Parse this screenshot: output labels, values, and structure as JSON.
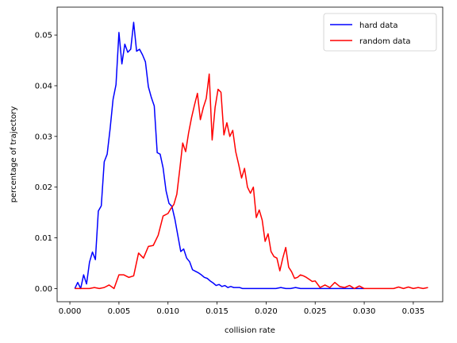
{
  "chart_data": {
    "type": "line",
    "xlabel": "collision rate",
    "ylabel": "percentage of trajectory",
    "xlim": [
      -0.0013,
      0.038
    ],
    "ylim": [
      -0.0026,
      0.0555
    ],
    "xticks": [
      "0.000",
      "0.005",
      "0.010",
      "0.015",
      "0.020",
      "0.025",
      "0.030",
      "0.035"
    ],
    "yticks": [
      "0.00",
      "0.01",
      "0.02",
      "0.03",
      "0.04",
      "0.05"
    ],
    "xtick_values": [
      0.0,
      0.005,
      0.01,
      0.015,
      0.02,
      0.025,
      0.03,
      0.035
    ],
    "ytick_values": [
      0.0,
      0.01,
      0.02,
      0.03,
      0.04,
      0.05
    ],
    "grid": false,
    "legend": {
      "placement": "top-right"
    },
    "series": [
      {
        "name": "hard data",
        "color": "#0000ff",
        "x": [
          0.0005,
          0.0008,
          0.0011,
          0.0014,
          0.0017,
          0.002,
          0.0023,
          0.0026,
          0.0029,
          0.0032,
          0.0035,
          0.0038,
          0.0041,
          0.0044,
          0.0047,
          0.005,
          0.0053,
          0.0056,
          0.0059,
          0.0062,
          0.0065,
          0.0068,
          0.0071,
          0.0074,
          0.0077,
          0.008,
          0.0083,
          0.0086,
          0.0089,
          0.0092,
          0.0095,
          0.0098,
          0.0101,
          0.0104,
          0.0107,
          0.011,
          0.0113,
          0.0116,
          0.0119,
          0.0122,
          0.0125,
          0.0128,
          0.0131,
          0.0134,
          0.0137,
          0.014,
          0.0143,
          0.0146,
          0.0149,
          0.0152,
          0.0155,
          0.0158,
          0.0161,
          0.0164,
          0.0167,
          0.017,
          0.0173,
          0.0176,
          0.0179,
          0.0182,
          0.0185,
          0.0188,
          0.0191,
          0.0194,
          0.0197,
          0.02,
          0.0205,
          0.021,
          0.0215,
          0.022,
          0.0225,
          0.023,
          0.0235,
          0.024,
          0.0245,
          0.025,
          0.026,
          0.027,
          0.028,
          0.029,
          0.0295,
          0.03
        ],
        "y": [
          0.0,
          0.0012,
          0.0,
          0.0027,
          0.0009,
          0.0052,
          0.0072,
          0.0057,
          0.0153,
          0.0163,
          0.025,
          0.0265,
          0.0315,
          0.0373,
          0.0402,
          0.0505,
          0.0443,
          0.0482,
          0.0466,
          0.0472,
          0.0525,
          0.0468,
          0.0472,
          0.0461,
          0.0447,
          0.0398,
          0.0377,
          0.036,
          0.0268,
          0.0265,
          0.0238,
          0.0193,
          0.0168,
          0.0162,
          0.0137,
          0.0105,
          0.0073,
          0.0078,
          0.006,
          0.0053,
          0.0037,
          0.0034,
          0.0031,
          0.0027,
          0.0022,
          0.002,
          0.0015,
          0.0011,
          0.0006,
          0.0008,
          0.0004,
          0.0006,
          0.0002,
          0.0004,
          0.0002,
          0.0002,
          0.0002,
          0.0,
          0.0,
          0.0,
          0.0,
          0.0,
          0.0,
          0.0,
          0.0,
          0.0,
          0.0,
          0.0,
          0.0002,
          0.0,
          0.0,
          0.0002,
          0.0,
          0.0,
          0.0,
          0.0,
          0.0,
          0.0,
          0.0,
          0.0,
          0.0,
          0.0
        ]
      },
      {
        "name": "random data",
        "color": "#ff0000",
        "x": [
          0.0005,
          0.001,
          0.0015,
          0.002,
          0.0025,
          0.003,
          0.0035,
          0.004,
          0.0045,
          0.005,
          0.0055,
          0.006,
          0.0065,
          0.007,
          0.0075,
          0.008,
          0.0085,
          0.009,
          0.0095,
          0.01,
          0.0103,
          0.0106,
          0.0109,
          0.0112,
          0.0115,
          0.0118,
          0.0121,
          0.0124,
          0.0127,
          0.013,
          0.0133,
          0.0136,
          0.0139,
          0.0142,
          0.0145,
          0.0148,
          0.0151,
          0.0154,
          0.0157,
          0.016,
          0.0163,
          0.0166,
          0.0169,
          0.0172,
          0.0175,
          0.0178,
          0.0181,
          0.0184,
          0.0187,
          0.019,
          0.0193,
          0.0196,
          0.0199,
          0.0202,
          0.0205,
          0.0208,
          0.0211,
          0.0214,
          0.0217,
          0.022,
          0.0223,
          0.0226,
          0.0229,
          0.0232,
          0.0235,
          0.0238,
          0.0241,
          0.0244,
          0.0247,
          0.025,
          0.0255,
          0.026,
          0.0265,
          0.027,
          0.0275,
          0.028,
          0.0285,
          0.029,
          0.0295,
          0.03,
          0.031,
          0.032,
          0.033,
          0.0335,
          0.034,
          0.0345,
          0.035,
          0.0355,
          0.036,
          0.0365
        ],
        "y": [
          0.0,
          0.0,
          0.0,
          0.0,
          0.0002,
          0.0,
          0.0002,
          0.0007,
          0.0,
          0.0027,
          0.0027,
          0.0022,
          0.0025,
          0.007,
          0.006,
          0.0083,
          0.0085,
          0.0105,
          0.0143,
          0.0148,
          0.0158,
          0.0166,
          0.0186,
          0.0235,
          0.0287,
          0.027,
          0.0307,
          0.0337,
          0.0362,
          0.0385,
          0.0333,
          0.0357,
          0.0375,
          0.0423,
          0.0293,
          0.0357,
          0.0393,
          0.0387,
          0.0303,
          0.0327,
          0.03,
          0.0312,
          0.027,
          0.0245,
          0.0218,
          0.0237,
          0.02,
          0.0188,
          0.02,
          0.014,
          0.0155,
          0.0135,
          0.0093,
          0.0108,
          0.0073,
          0.0063,
          0.006,
          0.0035,
          0.006,
          0.0081,
          0.0042,
          0.0033,
          0.002,
          0.0022,
          0.0027,
          0.0025,
          0.0022,
          0.0018,
          0.0014,
          0.0015,
          0.0002,
          0.0007,
          0.0002,
          0.0012,
          0.0004,
          0.0002,
          0.0006,
          0.0,
          0.0005,
          0.0,
          0.0,
          0.0,
          0.0,
          0.0003,
          0.0,
          0.0003,
          0.0,
          0.0002,
          0.0,
          0.0002
        ]
      }
    ]
  }
}
